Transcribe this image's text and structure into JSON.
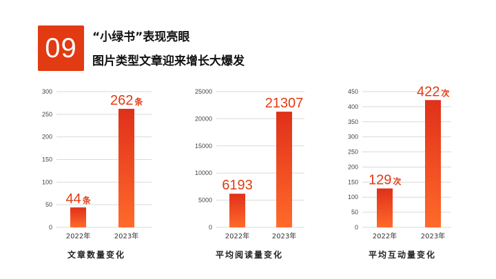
{
  "header": {
    "number": "09",
    "title_line1": "“小绿书”表现亮眼",
    "title_line2": "图片类型文章迎来增长大爆发"
  },
  "colors": {
    "accent": "#e23a12",
    "bar_top": "#e0301a",
    "bar_bottom": "#ff6a2a",
    "grid": "#d9d9d9"
  },
  "chart_data": [
    {
      "type": "bar",
      "categories": [
        "2022年",
        "2023年"
      ],
      "values": [
        44,
        262
      ],
      "value_labels": [
        "44",
        "262"
      ],
      "unit": "条",
      "ylim": [
        0,
        300
      ],
      "yticks": [
        "0",
        "50",
        "100",
        "150",
        "200",
        "250",
        "300"
      ],
      "caption": "文章数量变化",
      "grid": true
    },
    {
      "type": "bar",
      "categories": [
        "2022年",
        "2023年"
      ],
      "values": [
        6193,
        21307
      ],
      "value_labels": [
        "6193",
        "21307"
      ],
      "unit": "",
      "ylim": [
        0,
        25000
      ],
      "yticks": [
        "0",
        "5000",
        "10000",
        "15000",
        "20000",
        "25000"
      ],
      "caption": "平均阅读量变化",
      "grid": true
    },
    {
      "type": "bar",
      "categories": [
        "2022年",
        "2023年"
      ],
      "values": [
        129,
        422
      ],
      "value_labels": [
        "129",
        "422"
      ],
      "unit": "次",
      "ylim": [
        0,
        450
      ],
      "yticks": [
        "0",
        "50",
        "100",
        "150",
        "200",
        "250",
        "300",
        "350",
        "400",
        "450"
      ],
      "caption": "平均互动量变化",
      "grid": true
    }
  ]
}
